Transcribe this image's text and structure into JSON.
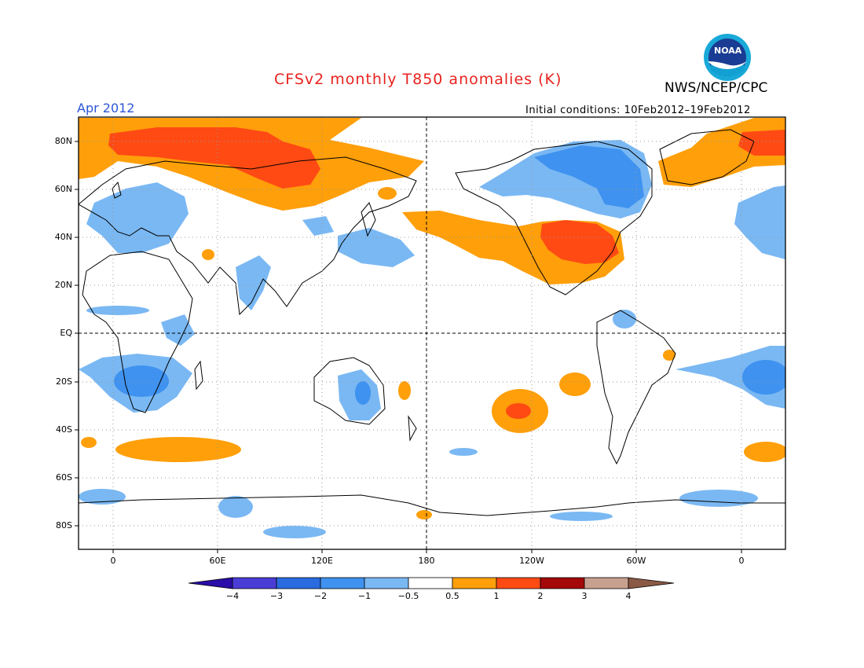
{
  "title": "CFSv2 monthly T850 anomalies (K)",
  "agency": "NWS/NCEP/CPC",
  "logo": {
    "text": "NOAA",
    "icon": "noaa-logo-icon"
  },
  "valid_month": "Apr 2012",
  "initial_conditions": "Initial conditions: 10Feb2012–19Feb2012",
  "map": {
    "projection": "cylindrical",
    "lon_range": [
      -10,
      190
    ],
    "lat_range": [
      -90,
      90
    ],
    "lat_labels": [
      "80N",
      "60N",
      "40N",
      "20N",
      "EQ",
      "20S",
      "40S",
      "60S",
      "80S"
    ],
    "lon_labels": [
      "0",
      "60E",
      "120E",
      "180",
      "120W",
      "60W",
      "0"
    ]
  },
  "colorbar": {
    "labels": [
      "−4",
      "−3",
      "−2",
      "−1",
      "−0.5",
      "0.5",
      "1",
      "2",
      "3",
      "4"
    ],
    "colors": [
      "#2a0ca8",
      "#4a3dd6",
      "#2a6be0",
      "#3f92ef",
      "#7ab8f3",
      "#ffffff",
      "#ff9f0a",
      "#ff4a14",
      "#a40808",
      "#c8a090",
      "#8a5a46"
    ]
  }
}
